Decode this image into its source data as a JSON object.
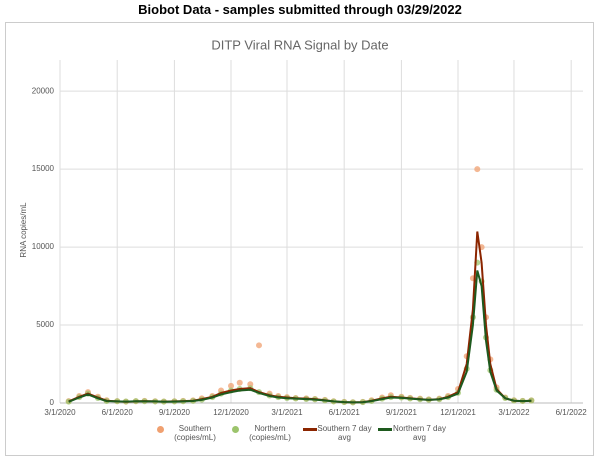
{
  "page_title": "Biobot Data - samples submitted through 03/29/2022",
  "chart_data": {
    "type": "scatter",
    "title": "DITP Viral RNA Signal by Date",
    "y_label": "RNA copies/mL",
    "x": [
      "2020-03-15",
      "2020-04-01",
      "2020-04-15",
      "2020-05-01",
      "2020-05-15",
      "2020-06-01",
      "2020-06-15",
      "2020-07-01",
      "2020-07-15",
      "2020-08-01",
      "2020-08-15",
      "2020-09-01",
      "2020-09-15",
      "2020-10-01",
      "2020-10-15",
      "2020-11-01",
      "2020-11-15",
      "2020-12-01",
      "2020-12-15",
      "2021-01-01",
      "2021-01-15",
      "2021-02-01",
      "2021-02-15",
      "2021-03-01",
      "2021-03-15",
      "2021-04-01",
      "2021-04-15",
      "2021-05-01",
      "2021-05-15",
      "2021-06-01",
      "2021-06-15",
      "2021-07-01",
      "2021-07-15",
      "2021-08-01",
      "2021-08-15",
      "2021-09-01",
      "2021-09-15",
      "2021-10-01",
      "2021-10-15",
      "2021-11-01",
      "2021-11-15",
      "2021-12-01",
      "2021-12-15",
      "2021-12-25",
      "2022-01-01",
      "2022-01-08",
      "2022-01-15",
      "2022-01-22",
      "2022-02-01",
      "2022-02-15",
      "2022-03-01",
      "2022-03-15",
      "2022-03-29"
    ],
    "series": [
      {
        "name": "Southern (copies/mL)",
        "type": "scatter",
        "color": "#f0a070",
        "values": [
          120,
          450,
          700,
          400,
          180,
          120,
          90,
          110,
          140,
          110,
          100,
          110,
          140,
          170,
          300,
          450,
          800,
          1100,
          1300,
          1200,
          3700,
          600,
          450,
          380,
          320,
          300,
          260,
          200,
          110,
          70,
          50,
          70,
          180,
          350,
          500,
          400,
          330,
          280,
          230,
          280,
          450,
          900,
          3000,
          8000,
          15000,
          10000,
          5500,
          2800,
          1000,
          350,
          180,
          140,
          170
        ]
      },
      {
        "name": "Northern (copies/mL)",
        "type": "scatter",
        "color": "#9cc46c",
        "values": [
          90,
          380,
          600,
          320,
          130,
          110,
          100,
          120,
          110,
          100,
          90,
          100,
          110,
          140,
          220,
          380,
          600,
          800,
          900,
          950,
          700,
          480,
          380,
          320,
          290,
          260,
          230,
          170,
          100,
          60,
          40,
          55,
          130,
          280,
          380,
          350,
          290,
          240,
          210,
          240,
          380,
          650,
          2200,
          5500,
          9000,
          7800,
          4200,
          2100,
          850,
          320,
          160,
          130,
          160
        ]
      },
      {
        "name": "Southern 7 day avg",
        "type": "line",
        "color": "#8b2500",
        "values": [
          100,
          400,
          600,
          350,
          150,
          100,
          80,
          100,
          120,
          100,
          90,
          100,
          120,
          150,
          250,
          400,
          650,
          800,
          900,
          950,
          700,
          500,
          400,
          350,
          300,
          280,
          250,
          180,
          100,
          60,
          40,
          60,
          150,
          300,
          400,
          350,
          300,
          250,
          200,
          250,
          400,
          700,
          2500,
          6000,
          11000,
          9000,
          5000,
          2500,
          900,
          300,
          150,
          120,
          150
        ]
      },
      {
        "name": "Northern 7 day avg",
        "type": "line",
        "color": "#1e5a1e",
        "values": [
          80,
          350,
          550,
          300,
          120,
          100,
          90,
          110,
          100,
          100,
          80,
          90,
          100,
          130,
          200,
          350,
          550,
          700,
          800,
          850,
          650,
          450,
          350,
          300,
          280,
          250,
          220,
          160,
          100,
          60,
          40,
          50,
          120,
          250,
          350,
          330,
          280,
          230,
          200,
          230,
          350,
          600,
          2000,
          5000,
          8500,
          7500,
          4000,
          2000,
          800,
          300,
          150,
          120,
          150
        ]
      }
    ],
    "xlim": [
      "2020-03-01",
      "2022-06-20"
    ],
    "xticks": [
      {
        "value": "2020-03-01",
        "label": "3/1/2020"
      },
      {
        "value": "2020-06-01",
        "label": "6/1/2020"
      },
      {
        "value": "2020-09-01",
        "label": "9/1/2020"
      },
      {
        "value": "2020-12-01",
        "label": "12/1/2020"
      },
      {
        "value": "2021-03-01",
        "label": "3/1/2021"
      },
      {
        "value": "2021-06-01",
        "label": "6/1/2021"
      },
      {
        "value": "2021-09-01",
        "label": "9/1/2021"
      },
      {
        "value": "2021-12-01",
        "label": "12/1/2021"
      },
      {
        "value": "2022-03-01",
        "label": "3/1/2022"
      },
      {
        "value": "2022-06-01",
        "label": "6/1/2022"
      }
    ],
    "ylim": [
      0,
      22000
    ],
    "yticks": [
      0,
      5000,
      10000,
      15000,
      20000
    ],
    "grid": true
  }
}
